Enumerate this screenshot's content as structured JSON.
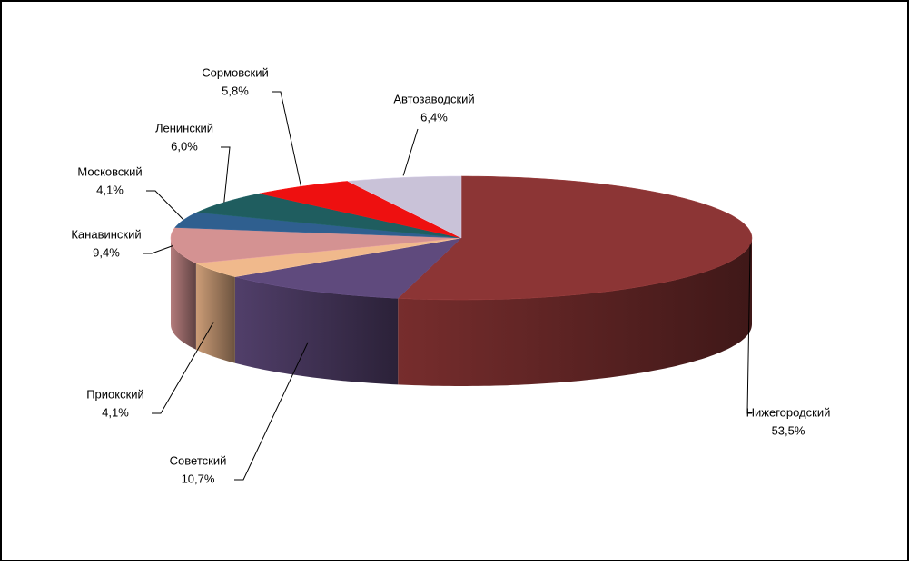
{
  "chart_data": {
    "type": "pie3d",
    "categories": [
      "Нижегородский",
      "Советский",
      "Приокский",
      "Канавинский",
      "Московский",
      "Ленинский",
      "Сормовский",
      "Автозаводский"
    ],
    "values": [
      53.5,
      10.7,
      4.1,
      9.4,
      4.1,
      6.0,
      5.8,
      6.4
    ],
    "value_labels": [
      "53,5%",
      "10,7%",
      "4,1%",
      "9,4%",
      "4,1%",
      "6,0%",
      "5,8%",
      "6,4%"
    ],
    "colors": [
      "#8c3535",
      "#5f4a7d",
      "#f0b98c",
      "#d49292",
      "#2f5f8f",
      "#1f5d5f",
      "#ee1010",
      "#c9c2d8"
    ]
  }
}
